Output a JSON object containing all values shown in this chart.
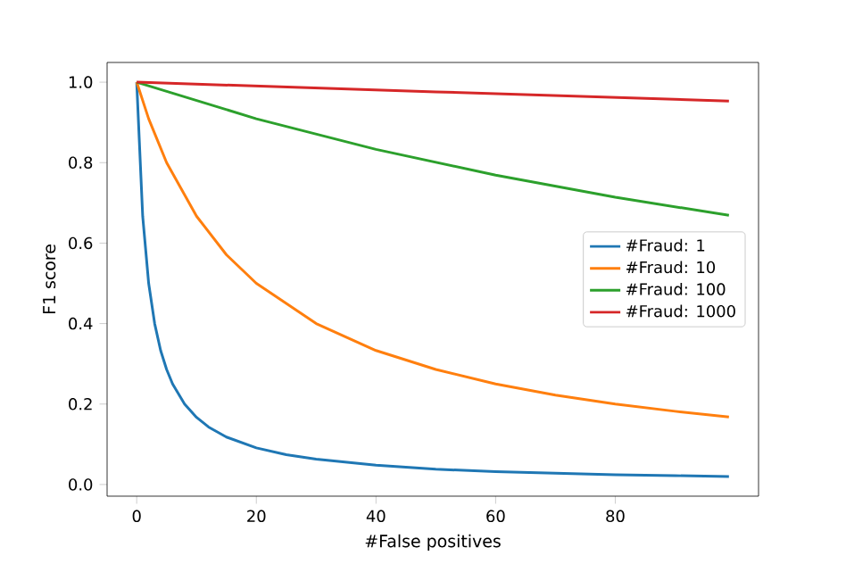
{
  "chart_data": {
    "type": "line",
    "xlabel": "#False positives",
    "ylabel": "F1 score",
    "xlim": [
      -4.95,
      103.95
    ],
    "ylim": [
      -0.029,
      1.049
    ],
    "xticks": [
      0,
      20,
      40,
      60,
      80
    ],
    "yticks": [
      {
        "value": 0,
        "label": "0.0"
      },
      {
        "value": 0.2,
        "label": "0.2"
      },
      {
        "value": 0.4,
        "label": "0.4"
      },
      {
        "value": 0.6,
        "label": "0.6"
      },
      {
        "value": 0.8,
        "label": "0.8"
      },
      {
        "value": 1.0,
        "label": "1.0"
      }
    ],
    "legend": "right",
    "grid": false,
    "marker": "none",
    "line_style": "solid",
    "series": [
      {
        "name": "#Fraud: 1",
        "color": "#1f77b4",
        "x": [
          0,
          1,
          2,
          3,
          4,
          5,
          6,
          8,
          10,
          12,
          15,
          20,
          25,
          30,
          40,
          50,
          60,
          70,
          80,
          90,
          99
        ],
        "values": [
          1,
          0.667,
          0.5,
          0.4,
          0.333,
          0.286,
          0.25,
          0.2,
          0.167,
          0.143,
          0.118,
          0.091,
          0.074,
          0.063,
          0.048,
          0.038,
          0.032,
          0.028,
          0.024,
          0.022,
          0.02
        ]
      },
      {
        "name": "#Fraud: 10",
        "color": "#ff7f0e",
        "x": [
          0,
          2,
          5,
          10,
          15,
          20,
          30,
          40,
          50,
          60,
          70,
          80,
          90,
          99
        ],
        "values": [
          1,
          0.909,
          0.8,
          0.667,
          0.571,
          0.5,
          0.4,
          0.333,
          0.286,
          0.25,
          0.222,
          0.2,
          0.182,
          0.168
        ]
      },
      {
        "name": "#Fraud: 100",
        "color": "#2ca02c",
        "x": [
          0,
          20,
          40,
          60,
          80,
          99
        ],
        "values": [
          1,
          0.909,
          0.833,
          0.769,
          0.714,
          0.669
        ]
      },
      {
        "name": "#Fraud: 1000",
        "color": "#d62728",
        "x": [
          0,
          50,
          99
        ],
        "values": [
          1,
          0.976,
          0.953
        ]
      }
    ]
  }
}
